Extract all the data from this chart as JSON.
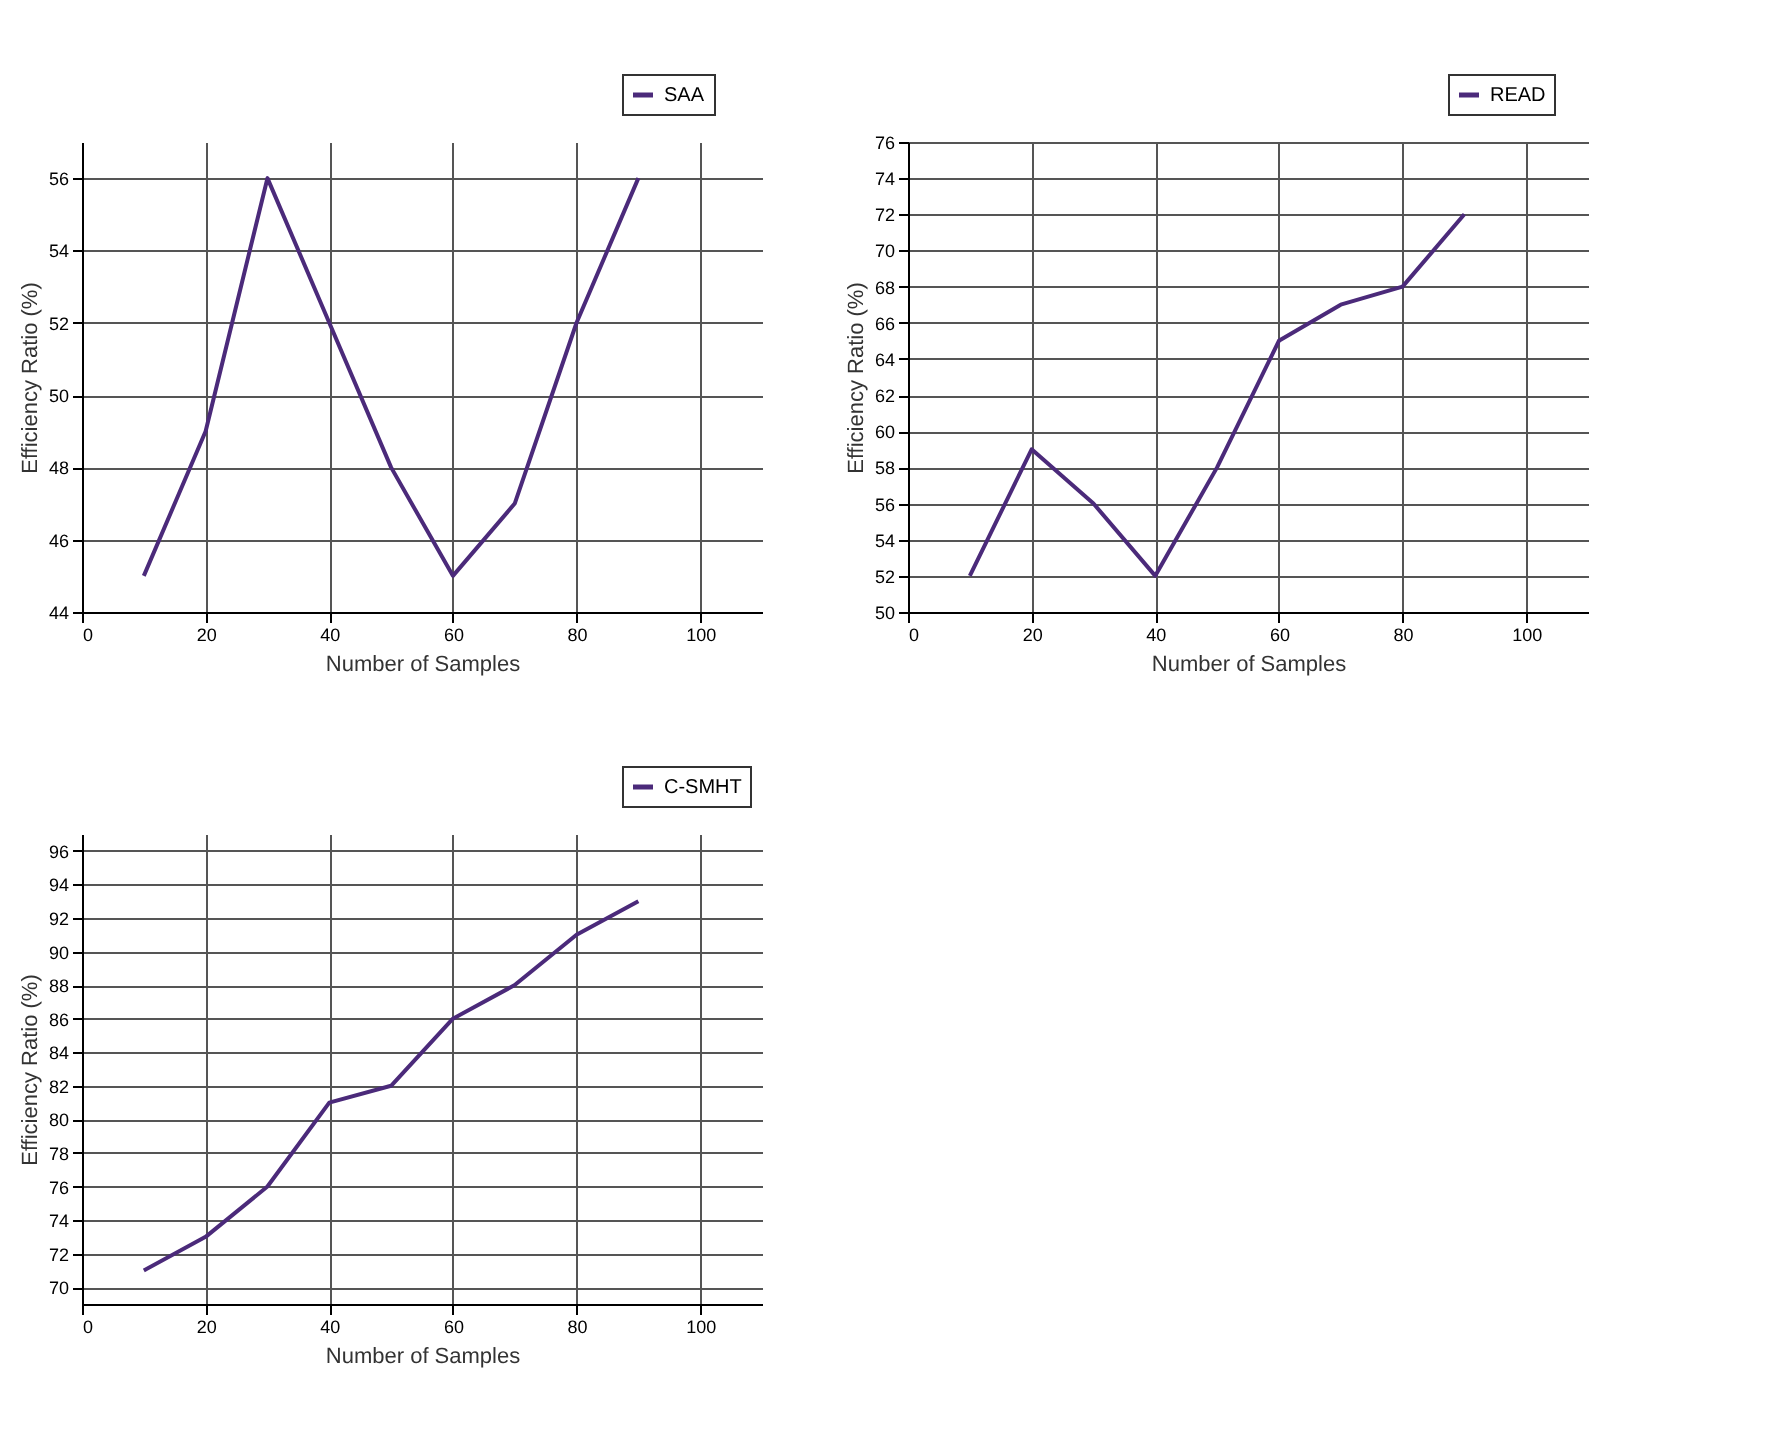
{
  "chart_data": [
    {
      "type": "line",
      "xlabel": "Number of Samples",
      "ylabel": "Efficiency Ratio (%)",
      "x": [
        10,
        20,
        30,
        40,
        50,
        60,
        70,
        80,
        90
      ],
      "xlim": [
        0,
        110
      ],
      "xticks": [
        0,
        20,
        40,
        60,
        80,
        100
      ],
      "ylim": [
        44,
        57
      ],
      "yticks": [
        44,
        46,
        48,
        50,
        52,
        54,
        56
      ],
      "grid": true,
      "legend": "top right",
      "series": [
        {
          "name": "SAA",
          "color": "#4b2a7a",
          "values": [
            45,
            49,
            56,
            52,
            48,
            45,
            47,
            52,
            56
          ]
        }
      ]
    },
    {
      "type": "line",
      "xlabel": "Number of Samples",
      "ylabel": "Efficiency Ratio (%)",
      "x": [
        10,
        20,
        30,
        40,
        50,
        60,
        70,
        80,
        90
      ],
      "xlim": [
        0,
        110
      ],
      "xticks": [
        0,
        20,
        40,
        60,
        80,
        100
      ],
      "ylim": [
        50,
        76
      ],
      "yticks": [
        50,
        52,
        54,
        56,
        58,
        60,
        62,
        64,
        66,
        68,
        70,
        72,
        74,
        76
      ],
      "grid": true,
      "legend": "top right",
      "series": [
        {
          "name": "READ",
          "color": "#4b2a7a",
          "values": [
            52,
            59,
            56,
            52,
            58,
            65,
            67,
            68,
            72
          ]
        }
      ]
    },
    {
      "type": "line",
      "xlabel": "Number of Samples",
      "ylabel": "Efficiency Ratio (%)",
      "x": [
        10,
        20,
        30,
        40,
        50,
        60,
        70,
        80,
        90
      ],
      "xlim": [
        0,
        110
      ],
      "xticks": [
        0,
        20,
        40,
        60,
        80,
        100
      ],
      "ylim": [
        69,
        97
      ],
      "yticks": [
        70,
        72,
        74,
        76,
        78,
        80,
        82,
        84,
        86,
        88,
        90,
        92,
        94,
        96
      ],
      "grid": true,
      "legend": "top right",
      "series": [
        {
          "name": "C-SMHT",
          "color": "#4b2a7a",
          "values": [
            71,
            73,
            76,
            81,
            82,
            86,
            88,
            91,
            93
          ]
        }
      ]
    }
  ]
}
